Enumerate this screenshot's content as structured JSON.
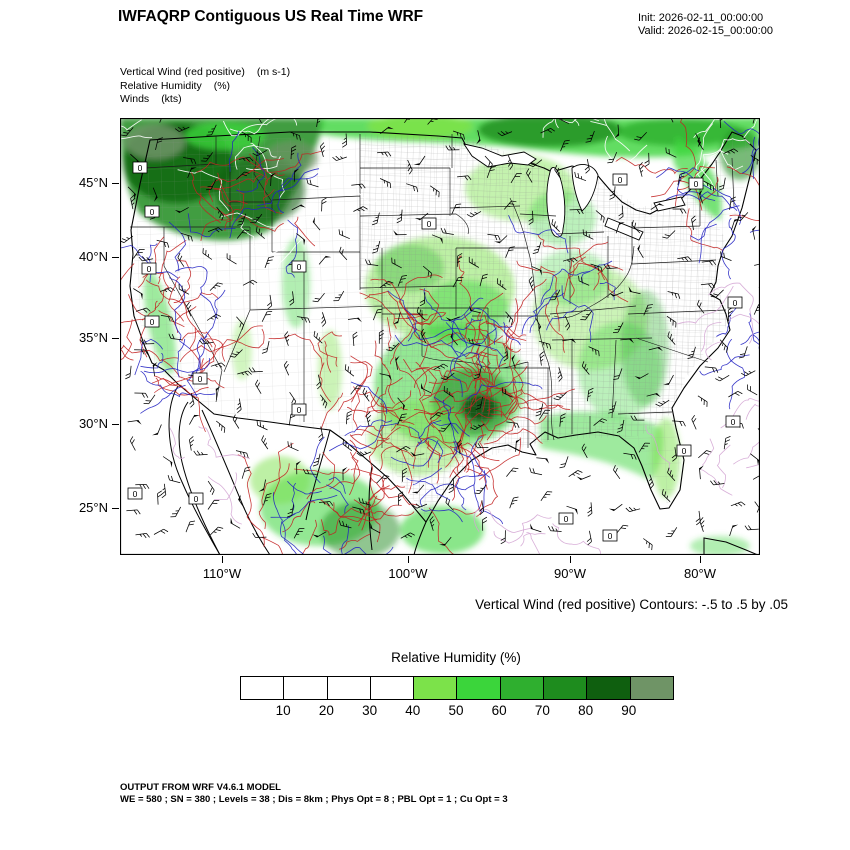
{
  "header": {
    "title": "IWFAQRP Contiguous US Real Time WRF",
    "init": "Init: 2026-02-11_00:00:00",
    "valid": "Valid: 2026-02-15_00:00:00"
  },
  "legend": {
    "rows": [
      {
        "name": "Vertical Wind (red positive)",
        "units": "(m s-1)"
      },
      {
        "name": "Relative Humidity",
        "units": "(%)"
      },
      {
        "name": "Winds",
        "units": "(kts)"
      }
    ]
  },
  "axes": {
    "y_ticks": [
      "45°N",
      "40°N",
      "35°N",
      "30°N",
      "25°N"
    ],
    "x_ticks": [
      "110°W",
      "100°W",
      "90°W",
      "80°W"
    ]
  },
  "map_overlay": {
    "zero_contour_label": "0"
  },
  "caption": "Vertical Wind (red positive) Contours: -.5 to .5 by .05",
  "colorbar": {
    "title": "Relative Humidity  (%)",
    "tick_labels": [
      "10",
      "20",
      "30",
      "40",
      "50",
      "60",
      "70",
      "80",
      "90"
    ],
    "cell_colors": [
      "#FFFFFF",
      "#FFFFFF",
      "#FFFFFF",
      "#FFFFFF",
      "#7CE24A",
      "#3BD53B",
      "#2FAF2F",
      "#1E8C1E",
      "#0F5F0F",
      "#6F9466"
    ]
  },
  "footer": {
    "line1": "OUTPUT FROM WRF V4.6.1 MODEL",
    "line2": "WE = 580 ; SN = 380 ; Levels = 38 ; Dis = 8km ; Phys Opt = 8 ; PBL Opt = 1 ; Cu Opt = 3"
  },
  "chart_data": {
    "type": "heatmap",
    "title": "IWFAQRP Contiguous US Real Time WRF",
    "init_time": "2026-02-11_00:00:00",
    "valid_time": "2026-02-15_00:00:00",
    "x_axis": {
      "tick_labels": [
        "110°W",
        "100°W",
        "90°W",
        "80°W"
      ]
    },
    "y_axis": {
      "tick_labels": [
        "45°N",
        "40°N",
        "35°N",
        "30°N",
        "25°N"
      ]
    },
    "layers": [
      {
        "name": "Vertical Wind (red positive)",
        "units": "m s-1",
        "render": "contours",
        "contour_levels": "-.5 to .5 by .05",
        "positive_color": "#c22222",
        "negative_color": "#2222c2"
      },
      {
        "name": "Relative Humidity",
        "units": "%",
        "render": "filled_contours",
        "levels": [
          10,
          20,
          30,
          40,
          50,
          60,
          70,
          80,
          90
        ],
        "palette": [
          "#FFFFFF",
          "#FFFFFF",
          "#FFFFFF",
          "#FFFFFF",
          "#7CE24A",
          "#3BD53B",
          "#2FAF2F",
          "#1E8C1E",
          "#0F5F0F",
          "#6F9466"
        ],
        "legend_position": "bottom"
      },
      {
        "name": "Winds",
        "units": "kts",
        "render": "wind_barbs",
        "color": "#000000"
      }
    ],
    "caption": "Vertical Wind (red positive) Contours: -.5 to .5 by .05",
    "model": "WRF V4.6.1",
    "grid_config": {
      "WE": 580,
      "SN": 380,
      "Levels": 38,
      "Dis": "8km",
      "Phys_Opt": 8,
      "PBL_Opt": 1,
      "Cu_Opt": 3
    }
  }
}
